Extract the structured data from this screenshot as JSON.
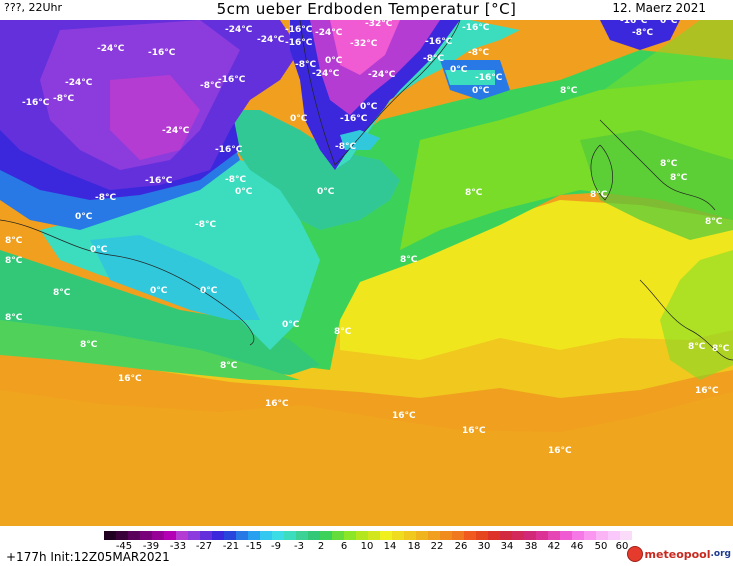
{
  "header": {
    "left": "???, 22Uhr",
    "title": "5cm ueber Erdboden Temperatur [°C]",
    "date": "12. Maerz 2021"
  },
  "footer": {
    "run_info": "+177h Init:12Z05MAR2021",
    "logo_text": "meteopool",
    "logo_suffix": ".org"
  },
  "colorbar": {
    "colors": [
      "#200020",
      "#3a003a",
      "#58005a",
      "#780078",
      "#960096",
      "#b400b4",
      "#b43cd2",
      "#8c3cdc",
      "#6430dc",
      "#3c28dc",
      "#2846dc",
      "#2878e6",
      "#28a0f0",
      "#32c8f0",
      "#3cdce6",
      "#3cdcbe",
      "#3cd296",
      "#32c878",
      "#3cd25a",
      "#64dc3c",
      "#8ce628",
      "#b4e61e",
      "#d2e61e",
      "#f0f01e",
      "#f0dc1e",
      "#f0c81e",
      "#f0b41e",
      "#f0a01e",
      "#f08c1e",
      "#f0781e",
      "#f05a1e",
      "#e6461e",
      "#dc3228",
      "#d22840",
      "#d2285a",
      "#d22878",
      "#dc3296",
      "#e646b4",
      "#f05ad2",
      "#f578e6",
      "#fa96f0",
      "#fab4f5",
      "#fac8fa",
      "#fadcfa"
    ],
    "ticks": [
      "-45",
      "-39",
      "-33",
      "-27",
      "-21",
      "-15",
      "-9",
      "-3",
      "2",
      "6",
      "10",
      "14",
      "18",
      "22",
      "26",
      "30",
      "34",
      "38",
      "42",
      "46",
      "50",
      "60"
    ]
  },
  "map_labels": [
    {
      "text": "-24°C"
    },
    {
      "text": "-16°C"
    },
    {
      "text": "-24°C"
    },
    {
      "text": "-24°C"
    },
    {
      "text": "-16°C"
    },
    {
      "text": "-24°C"
    },
    {
      "text": "-32°C"
    },
    {
      "text": "-24°C"
    },
    {
      "text": "-16°C"
    },
    {
      "text": "0°C"
    },
    {
      "text": "-16°C"
    },
    {
      "text": "-8°C"
    },
    {
      "text": "-16°C"
    },
    {
      "text": "-24°C"
    },
    {
      "text": "-8°C"
    },
    {
      "text": "-16°C"
    },
    {
      "text": "-32°C"
    },
    {
      "text": "-16°C"
    },
    {
      "text": "-8°C"
    },
    {
      "text": "-24°C"
    },
    {
      "text": "-8°C"
    },
    {
      "text": "-16°C"
    },
    {
      "text": "0°C"
    },
    {
      "text": "-24°C"
    },
    {
      "text": "-8°C"
    },
    {
      "text": "-16°C"
    },
    {
      "text": "0°C"
    },
    {
      "text": "0°C"
    },
    {
      "text": "8°C"
    },
    {
      "text": "0°C"
    },
    {
      "text": "-16°C"
    },
    {
      "text": "-8°C"
    },
    {
      "text": "-16°C"
    },
    {
      "text": "-8°C"
    },
    {
      "text": "0°C"
    },
    {
      "text": "-8°C"
    },
    {
      "text": "0°C"
    },
    {
      "text": "8°C"
    },
    {
      "text": "8°C"
    },
    {
      "text": "0°C"
    },
    {
      "text": "8°C"
    },
    {
      "text": "-8°C"
    },
    {
      "text": "0°C"
    },
    {
      "text": "8°C"
    },
    {
      "text": "8°C"
    },
    {
      "text": "8°C"
    },
    {
      "text": "8°C"
    },
    {
      "text": "0°C"
    },
    {
      "text": "0°C"
    },
    {
      "text": "8°C"
    },
    {
      "text": "8°C"
    },
    {
      "text": "0°C"
    },
    {
      "text": "8°C"
    },
    {
      "text": "8°C"
    },
    {
      "text": "8°C"
    },
    {
      "text": "8°C"
    },
    {
      "text": "16°C"
    },
    {
      "text": "16°C"
    },
    {
      "text": "16°C"
    },
    {
      "text": "16°C"
    },
    {
      "text": "16°C"
    },
    {
      "text": "16°C"
    },
    {
      "text": "-16°C"
    },
    {
      "text": "-8°C"
    },
    {
      "text": "0°C"
    },
    {
      "text": "8°C"
    },
    {
      "text": "8°C"
    }
  ]
}
